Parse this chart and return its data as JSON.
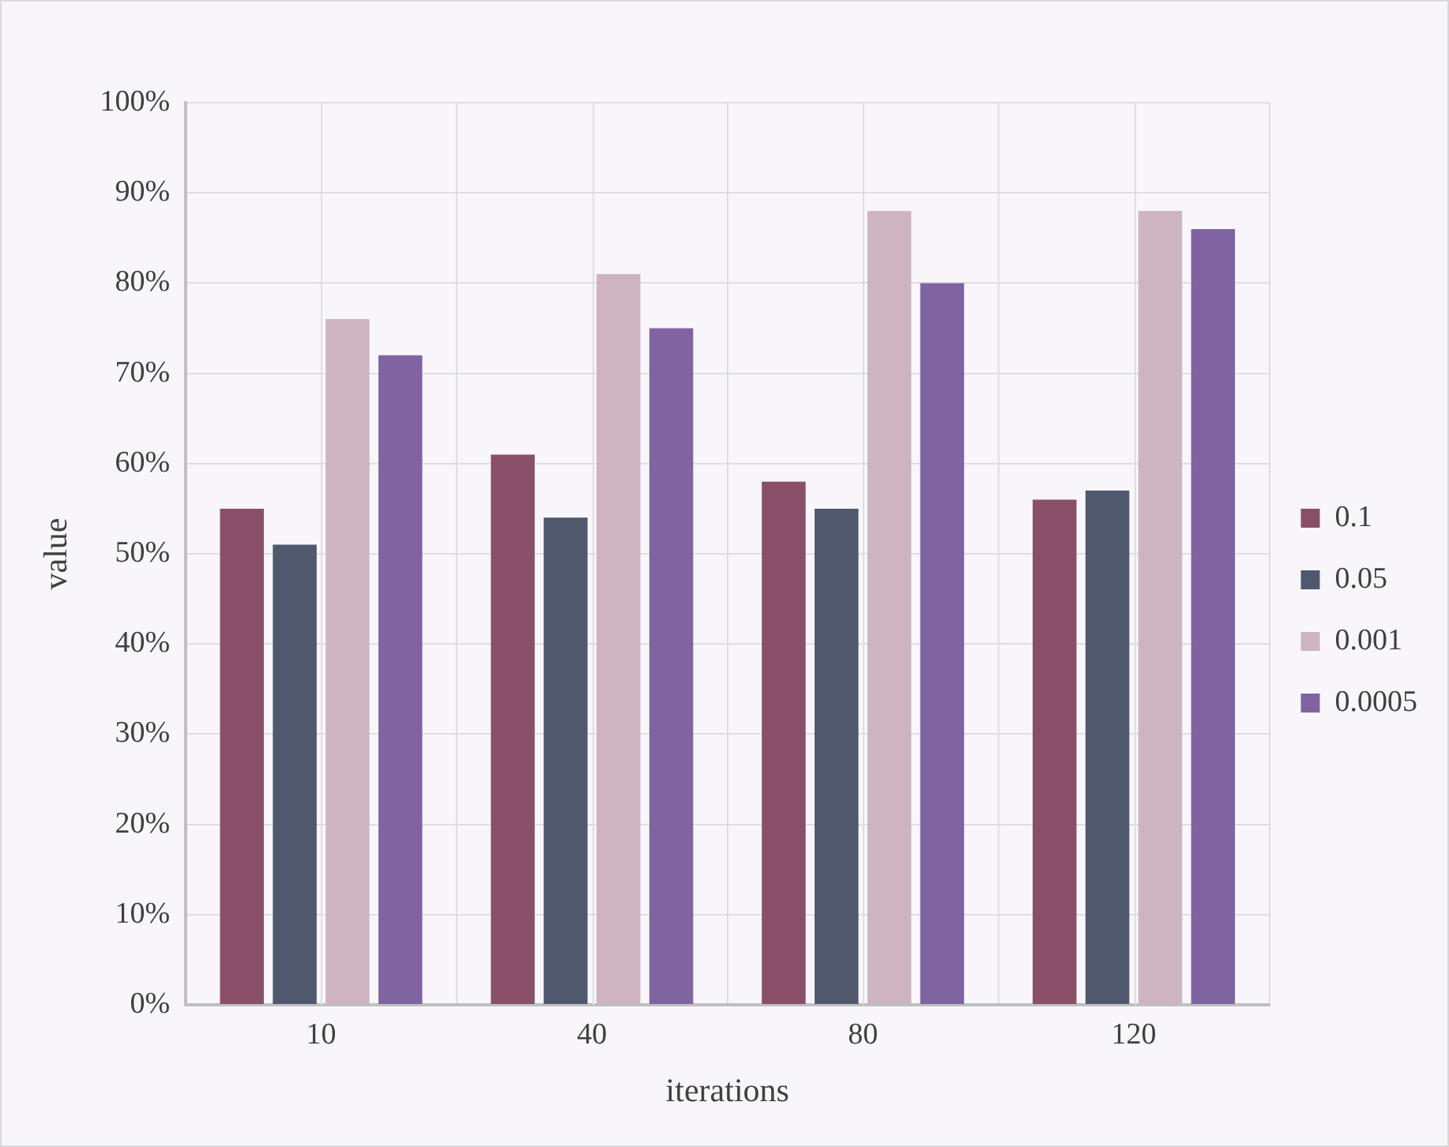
{
  "chart_data": {
    "type": "bar",
    "xlabel": "iterations",
    "ylabel": "value",
    "categories": [
      "10",
      "40",
      "80",
      "120"
    ],
    "series": [
      {
        "name": "0.1",
        "color": "#8a4f68",
        "values": [
          55,
          61,
          58,
          56
        ]
      },
      {
        "name": "0.05",
        "color": "#4f586d",
        "values": [
          51,
          54,
          55,
          57
        ]
      },
      {
        "name": "0.001",
        "color": "#ceb4c1",
        "values": [
          76,
          81,
          88,
          88
        ]
      },
      {
        "name": "0.0005",
        "color": "#8064a2",
        "values": [
          72,
          75,
          80,
          86
        ]
      }
    ],
    "ylim": [
      0,
      100
    ],
    "yticks": [
      {
        "value": 0,
        "label": "0%"
      },
      {
        "value": 10,
        "label": "10%"
      },
      {
        "value": 20,
        "label": "20%"
      },
      {
        "value": 30,
        "label": "30%"
      },
      {
        "value": 40,
        "label": "40%"
      },
      {
        "value": 50,
        "label": "50%"
      },
      {
        "value": 60,
        "label": "60%"
      },
      {
        "value": 70,
        "label": "70%"
      },
      {
        "value": 80,
        "label": "80%"
      },
      {
        "value": 90,
        "label": "90%"
      },
      {
        "value": 100,
        "label": "100%"
      }
    ],
    "grid": true,
    "legend": "right"
  }
}
